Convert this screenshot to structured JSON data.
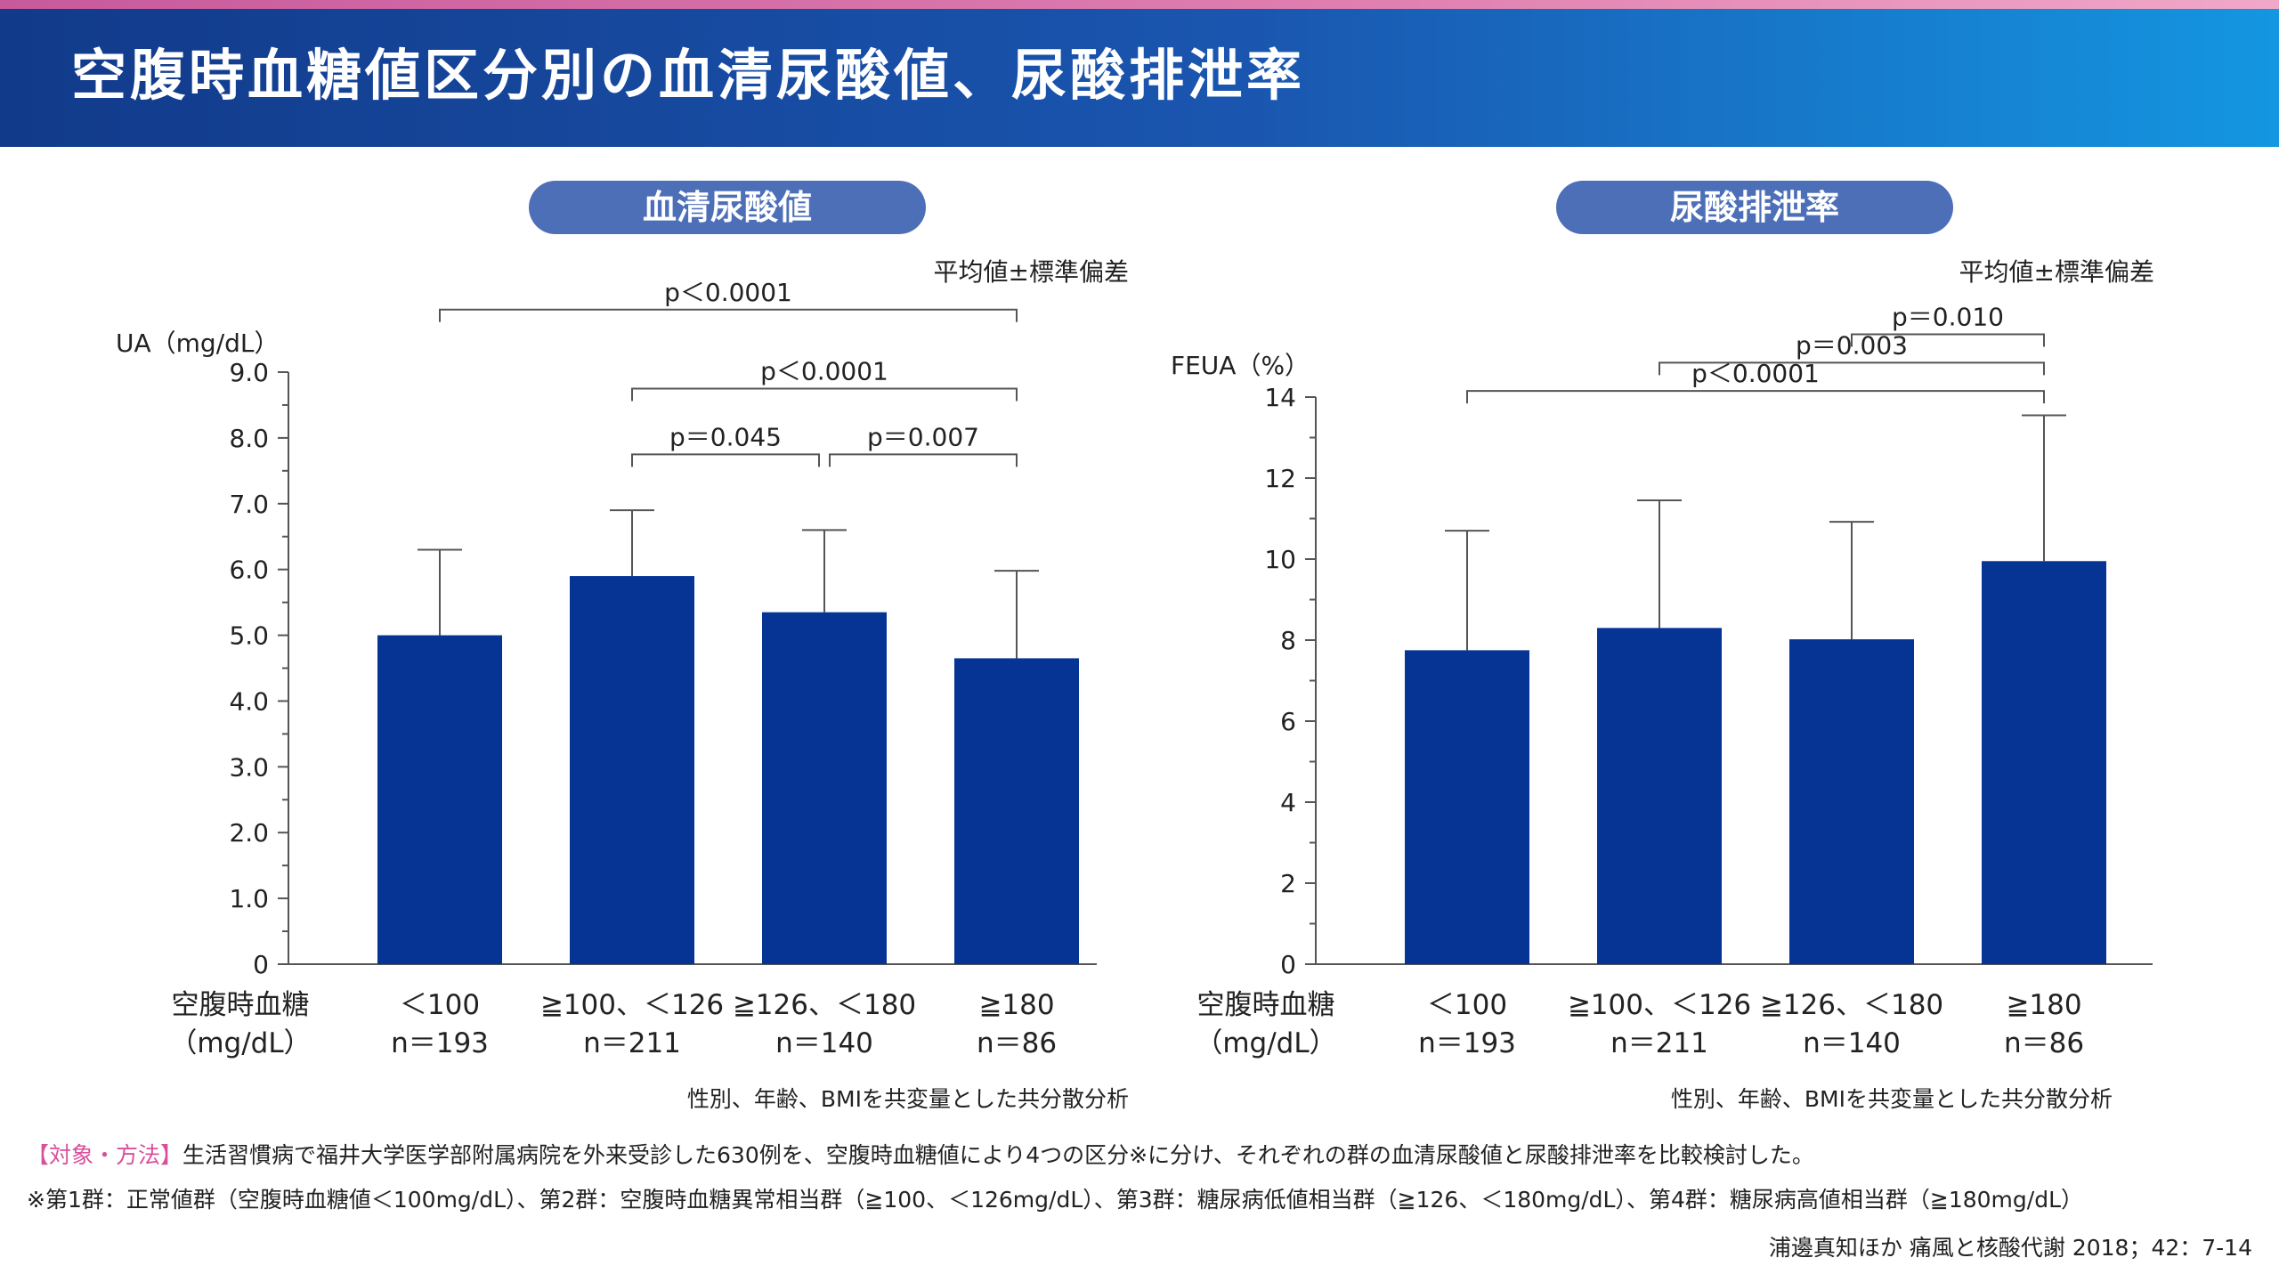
{
  "header": {
    "title": "空腹時血糖値区分別の血清尿酸値、尿酸排泄率"
  },
  "colors": {
    "bar": "#063494",
    "pill": "#4d6fb8",
    "note_tag": "#d94f9b"
  },
  "x_axis": {
    "label_line1": "空腹時血糖",
    "label_line2": "（mg/dL）",
    "categories": [
      {
        "label": "＜100",
        "n": "n＝193"
      },
      {
        "label": "≧100、＜126",
        "n": "n＝211"
      },
      {
        "label": "≧126、＜180",
        "n": "n＝140"
      },
      {
        "label": "≧180",
        "n": "n＝86"
      }
    ]
  },
  "chart_data": [
    {
      "type": "bar",
      "title": "血清尿酸値",
      "ylabel": "UA（mg/dL）",
      "note": "平均値±標準偏差",
      "footnote": "性別、年齢、BMIを共変量とした共分散分析",
      "ylim": [
        0,
        9
      ],
      "yticks": [
        "0",
        "1.0",
        "2.0",
        "3.0",
        "4.0",
        "5.0",
        "6.0",
        "7.0",
        "8.0",
        "9.0"
      ],
      "values": [
        5.0,
        5.9,
        5.35,
        4.65
      ],
      "errors": [
        1.3,
        1.0,
        1.25,
        1.33
      ],
      "comparisons": [
        {
          "from": 0,
          "to": 3,
          "label": "p＜0.0001",
          "level": 9.95
        },
        {
          "from": 1,
          "to": 3,
          "label": "p＜0.0001",
          "level": 8.75
        },
        {
          "from": 1,
          "to": 2,
          "label": "p＝0.045",
          "level": 7.75
        },
        {
          "from": 2,
          "to": 3,
          "label": "p＝0.007",
          "level": 7.75
        }
      ]
    },
    {
      "type": "bar",
      "title": "尿酸排泄率",
      "ylabel": "FEUA（%）",
      "note": "平均値±標準偏差",
      "footnote": "性別、年齢、BMIを共変量とした共分散分析",
      "ylim": [
        0,
        14
      ],
      "yticks": [
        "0",
        "2",
        "4",
        "6",
        "8",
        "10",
        "12",
        "14"
      ],
      "values": [
        7.75,
        8.3,
        8.02,
        9.95
      ],
      "errors": [
        2.95,
        3.15,
        2.9,
        3.6
      ],
      "comparisons": [
        {
          "from": 2,
          "to": 3,
          "label": "p＝0.010",
          "level": 15.55
        },
        {
          "from": 1,
          "to": 3,
          "label": "p＝0.003",
          "level": 14.85
        },
        {
          "from": 0,
          "to": 3,
          "label": "p＜0.0001",
          "level": 14.15
        }
      ]
    }
  ],
  "notes": {
    "method_tag": "【対象・方法】",
    "method_text": "生活習慣病で福井大学医学部附属病院を外来受診した630例を、空腹時血糖値により4つの区分※に分け、それぞれの群の血清尿酸値と尿酸排泄率を比較検討した。",
    "group_note": "※第1群：正常値群（空腹時血糖値＜100mg/dL）、第2群：空腹時血糖異常相当群（≧100、＜126mg/dL）、第3群：糖尿病低値相当群（≧126、＜180mg/dL）、第4群：糖尿病高値相当群（≧180mg/dL）",
    "citation": "浦邊真知ほか 痛風と核酸代謝 2018；42：7-14"
  }
}
